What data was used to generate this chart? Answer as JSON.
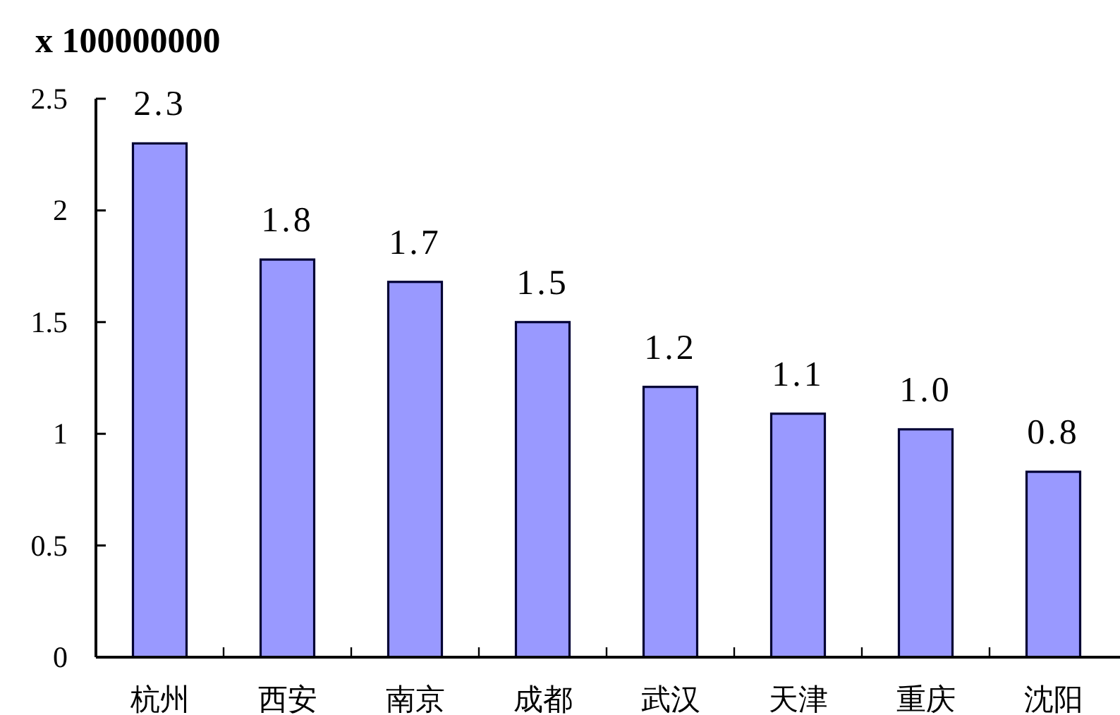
{
  "chart_data": {
    "type": "bar",
    "ylabel": "x 100000000",
    "categories": [
      "杭州",
      "西安",
      "南京",
      "成都",
      "武汉",
      "天津",
      "重庆",
      "沈阳"
    ],
    "values": [
      2.3,
      1.78,
      1.68,
      1.5,
      1.21,
      1.09,
      1.02,
      0.83
    ],
    "value_labels": [
      "2.3",
      "1.8",
      "1.7",
      "1.5",
      "1.2",
      "1.1",
      "1.0",
      "0.8"
    ],
    "color": "#9999ff",
    "ylim": [
      0,
      2.5
    ],
    "yticks": [
      0,
      0.5,
      1,
      1.5,
      2,
      2.5
    ]
  }
}
